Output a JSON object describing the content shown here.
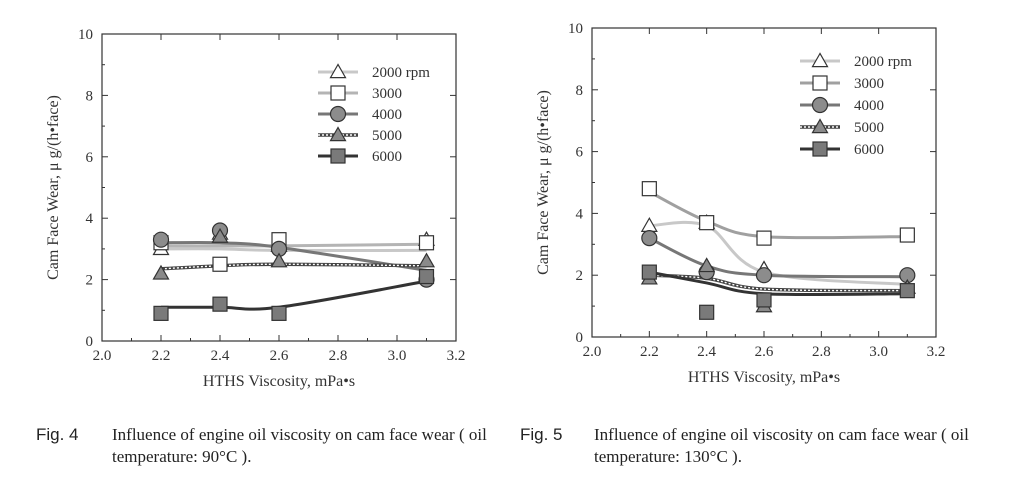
{
  "figures": [
    {
      "number": "Fig. 4",
      "caption": "Influence of engine oil viscosity on cam face wear ( oil temperature: 90°C )."
    },
    {
      "number": "Fig. 5",
      "caption": "Influence of engine oil viscosity on cam face wear ( oil temperature: 130°C )."
    }
  ],
  "chart_data": [
    {
      "type": "line",
      "title": "",
      "xlabel": "HTHS Viscosity, mPa•s",
      "ylabel": "Cam Face Wear, μ g/(h•face)",
      "xlim": [
        2.0,
        3.2
      ],
      "ylim": [
        0,
        10
      ],
      "xticks": [
        "2.0",
        "2.2",
        "2.4",
        "2.6",
        "2.8",
        "3.0",
        "3.2"
      ],
      "yticks": [
        "0",
        "2",
        "4",
        "6",
        "8",
        "10"
      ],
      "grid": false,
      "legend": "top-right",
      "series": [
        {
          "name": "2000 rpm",
          "marker": "triangle-open",
          "line_color": "#c8c8c8",
          "line_style": "solid",
          "x": [
            2.2,
            2.4,
            2.6,
            3.1
          ],
          "y": [
            3.0,
            3.5,
            3.1,
            3.3
          ],
          "fit": [
            3.0,
            3.0,
            2.95,
            2.95
          ]
        },
        {
          "name": "3000",
          "marker": "square-open",
          "line_color": "#b4b4b4",
          "line_style": "solid",
          "x": [
            2.2,
            2.4,
            2.6,
            3.1
          ],
          "y": [
            3.2,
            2.5,
            3.3,
            3.2
          ],
          "fit": [
            3.1,
            3.1,
            3.1,
            3.15
          ]
        },
        {
          "name": "4000",
          "marker": "circle-filled",
          "line_color": "#777777",
          "line_style": "solid",
          "x": [
            2.2,
            2.4,
            2.6,
            3.1
          ],
          "y": [
            3.3,
            3.6,
            3.0,
            2.0
          ],
          "fit": [
            3.2,
            3.2,
            3.05,
            2.3
          ]
        },
        {
          "name": "5000",
          "marker": "triangle-filled",
          "line_color": "#666666",
          "line_style": "dotted",
          "x": [
            2.2,
            2.4,
            2.6,
            3.1
          ],
          "y": [
            2.2,
            3.4,
            2.6,
            2.6
          ],
          "fit": [
            2.35,
            2.45,
            2.5,
            2.45
          ]
        },
        {
          "name": "6000",
          "marker": "square-filled",
          "line_color": "#333333",
          "line_style": "solid",
          "x": [
            2.2,
            2.4,
            2.6,
            3.1
          ],
          "y": [
            0.9,
            1.2,
            0.9,
            2.1
          ],
          "fit": [
            1.1,
            1.1,
            1.1,
            1.95
          ]
        }
      ]
    },
    {
      "type": "line",
      "title": "",
      "xlabel": "HTHS Viscosity, mPa•s",
      "ylabel": "Cam Face Wear, μ g/(h•face)",
      "xlim": [
        2.0,
        3.2
      ],
      "ylim": [
        0,
        10
      ],
      "xticks": [
        "2.0",
        "2.2",
        "2.4",
        "2.6",
        "2.8",
        "3.0",
        "3.2"
      ],
      "yticks": [
        "0",
        "2",
        "4",
        "6",
        "8",
        "10"
      ],
      "grid": false,
      "legend": "top-right",
      "series": [
        {
          "name": "2000 rpm",
          "marker": "triangle-open",
          "line_color": "#c8c8c8",
          "line_style": "solid",
          "x": [
            2.2,
            2.4,
            2.6,
            3.1
          ],
          "y": [
            3.6,
            3.7,
            2.2,
            1.6
          ],
          "fit": [
            3.6,
            3.6,
            2.1,
            1.7
          ]
        },
        {
          "name": "3000",
          "marker": "square-open",
          "line_color": "#a0a0a0",
          "line_style": "solid",
          "x": [
            2.2,
            2.4,
            2.6,
            3.1
          ],
          "y": [
            4.8,
            3.7,
            3.2,
            3.3
          ],
          "fit": [
            4.7,
            3.75,
            3.25,
            3.25
          ]
        },
        {
          "name": "4000",
          "marker": "circle-filled",
          "line_color": "#777777",
          "line_style": "solid",
          "x": [
            2.2,
            2.4,
            2.6,
            3.1
          ],
          "y": [
            3.2,
            2.1,
            2.0,
            2.0
          ],
          "fit": [
            3.2,
            2.3,
            2.0,
            1.95
          ]
        },
        {
          "name": "5000",
          "marker": "triangle-filled",
          "line_color": "#666666",
          "line_style": "dotted",
          "x": [
            2.2,
            2.4,
            2.6,
            3.1
          ],
          "y": [
            1.9,
            2.3,
            1.0,
            1.6
          ],
          "fit": [
            2.0,
            1.9,
            1.55,
            1.5
          ]
        },
        {
          "name": "6000",
          "marker": "square-filled",
          "line_color": "#333333",
          "line_style": "solid",
          "x": [
            2.2,
            2.4,
            2.6,
            3.1
          ],
          "y": [
            2.1,
            0.8,
            1.2,
            1.5
          ],
          "fit": [
            2.1,
            1.75,
            1.4,
            1.4
          ]
        }
      ]
    }
  ]
}
